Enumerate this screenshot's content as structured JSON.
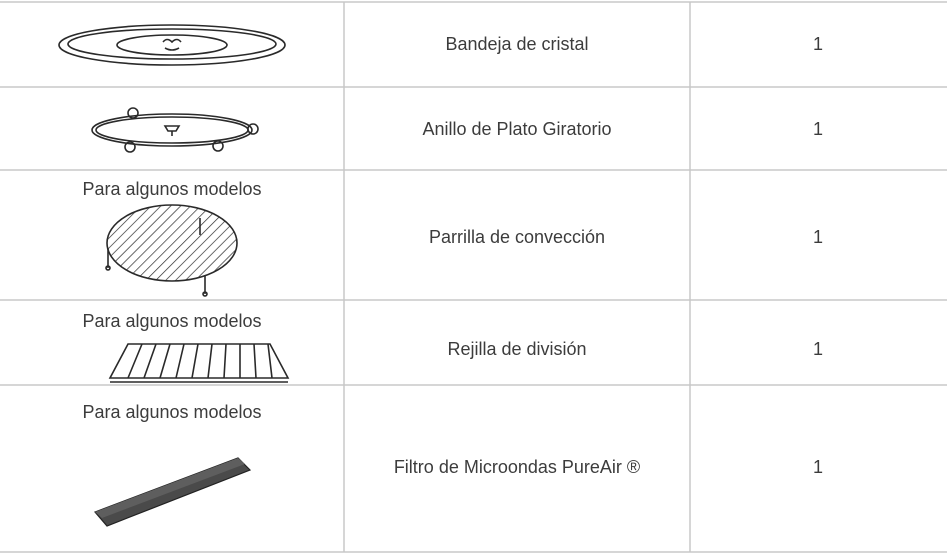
{
  "table": {
    "rows": [
      {
        "item": "Bandeja de cristal",
        "quantity": 1
      },
      {
        "item": "Anillo de Plato Giratorio",
        "quantity": 1
      },
      {
        "note": "Para algunos modelos",
        "item": "Parrilla de convección",
        "quantity": 1
      },
      {
        "note": "Para algunos modelos",
        "item": "Rejilla de división",
        "quantity": 1
      },
      {
        "note": "Para algunos modelos",
        "item": "Filtro de Microondas PureAir ®",
        "quantity": 1
      }
    ]
  }
}
